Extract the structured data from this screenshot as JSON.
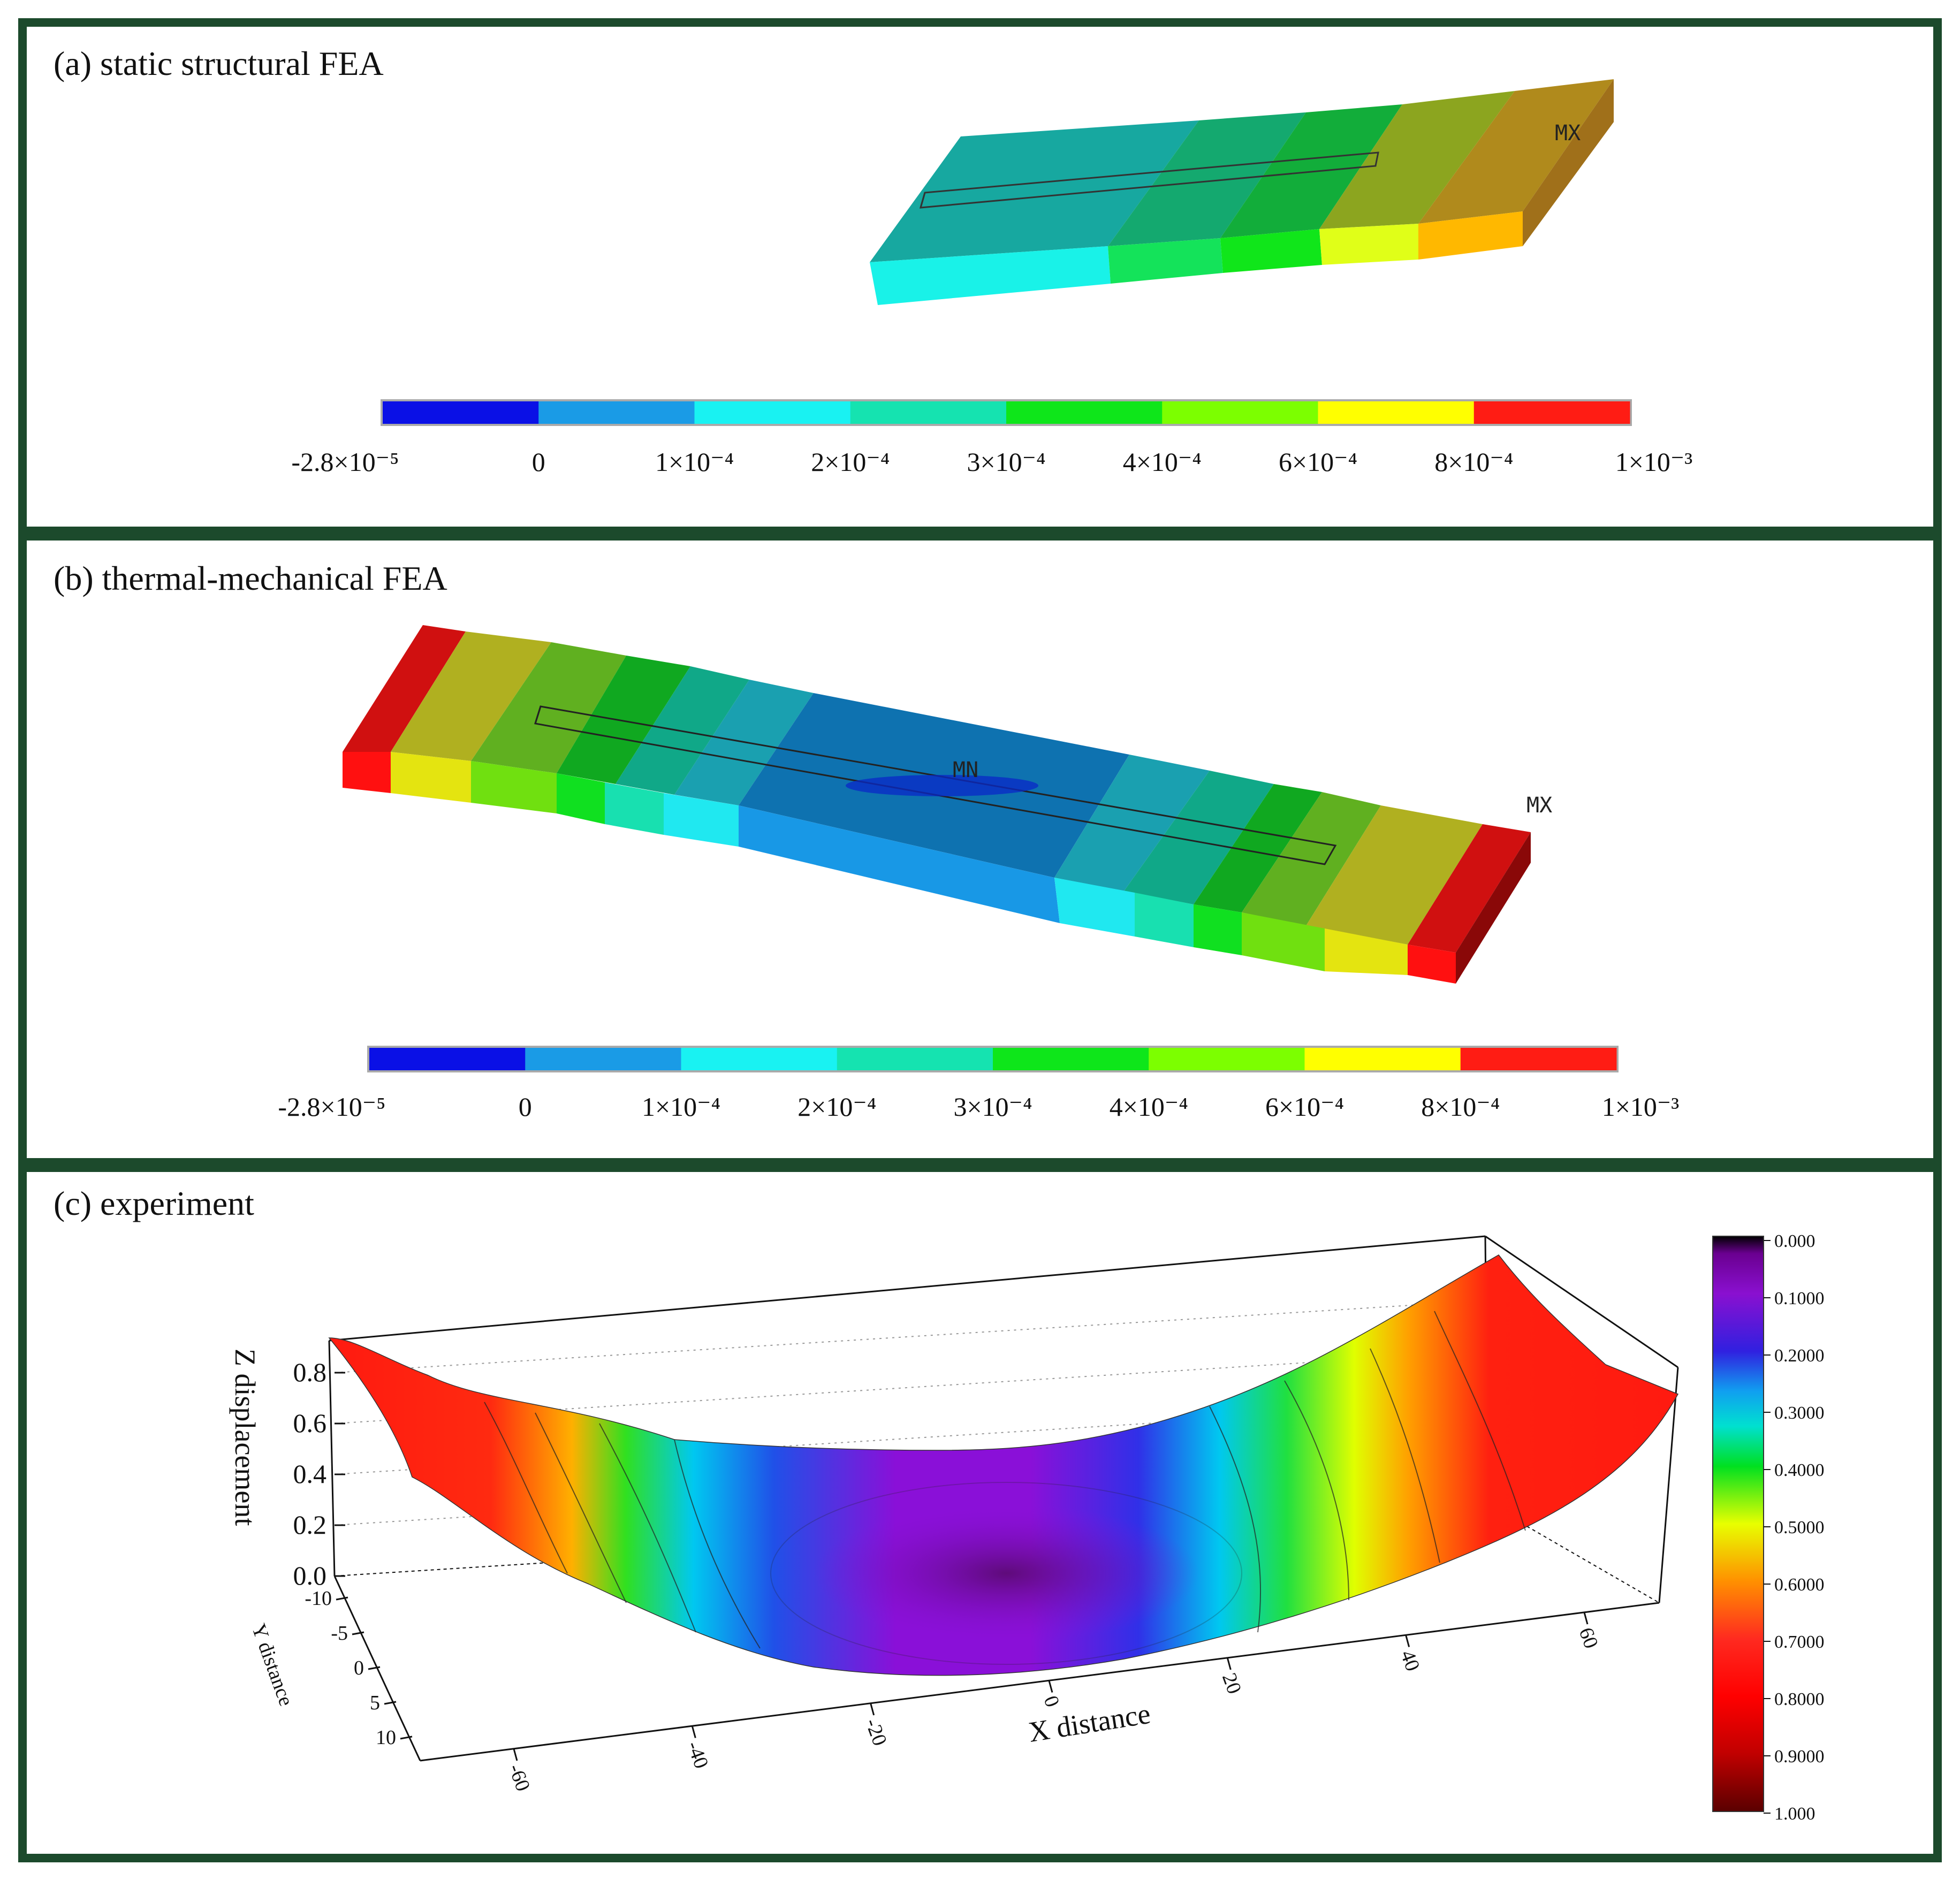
{
  "figure": {
    "border_color": "#1c4a2c",
    "panels": [
      {
        "id": "a",
        "title": "(a) static structural FEA",
        "max_marker": "MX",
        "colorbar": {
          "colors": [
            "#0a10e6",
            "#1a9be6",
            "#19f2f2",
            "#15e3b0",
            "#0ee61a",
            "#7cff00",
            "#ffff00",
            "#ff1c14"
          ],
          "labels": [
            "-2.8×10⁻⁵",
            "0",
            "1×10⁻⁴",
            "2×10⁻⁴",
            "3×10⁻⁴",
            "4×10⁻⁴",
            "6×10⁻⁴",
            "8×10⁻⁴",
            "1×10⁻³"
          ]
        }
      },
      {
        "id": "b",
        "title": "(b) thermal-mechanical FEA",
        "min_marker": "MN",
        "max_marker": "MX",
        "colorbar": {
          "colors": [
            "#0a10e6",
            "#1a9be6",
            "#19f2f2",
            "#15e3b0",
            "#0ee61a",
            "#7cff00",
            "#ffff00",
            "#ff1c14"
          ],
          "labels": [
            "-2.8×10⁻⁵",
            "0",
            "1×10⁻⁴",
            "2×10⁻⁴",
            "3×10⁻⁴",
            "4×10⁻⁴",
            "6×10⁻⁴",
            "8×10⁻⁴",
            "1×10⁻³"
          ]
        }
      },
      {
        "id": "c",
        "title": "(c) experiment",
        "z_axis": {
          "label": "Z displacement",
          "ticks": [
            "0.0",
            "0.2",
            "0.4",
            "0.6",
            "0.8"
          ]
        },
        "y_axis": {
          "label": "Y distance",
          "ticks": [
            "-10",
            "-5",
            "0",
            "5",
            "10"
          ]
        },
        "x_axis": {
          "label": "X distance",
          "ticks": [
            "-60",
            "-40",
            "-20",
            "0",
            "20",
            "40",
            "60"
          ]
        },
        "colorbar": {
          "labels": [
            "0.000",
            "0.1000",
            "0.2000",
            "0.3000",
            "0.4000",
            "0.5000",
            "0.6000",
            "0.7000",
            "0.8000",
            "0.9000",
            "1.000"
          ],
          "colors": [
            "#000000",
            "#8b00c8",
            "#2020e0",
            "#00c8ff",
            "#00e040",
            "#e0ff00",
            "#ffb000",
            "#ff2020",
            "#ff0000",
            "#a00000",
            "#6a0000"
          ]
        }
      }
    ]
  }
}
